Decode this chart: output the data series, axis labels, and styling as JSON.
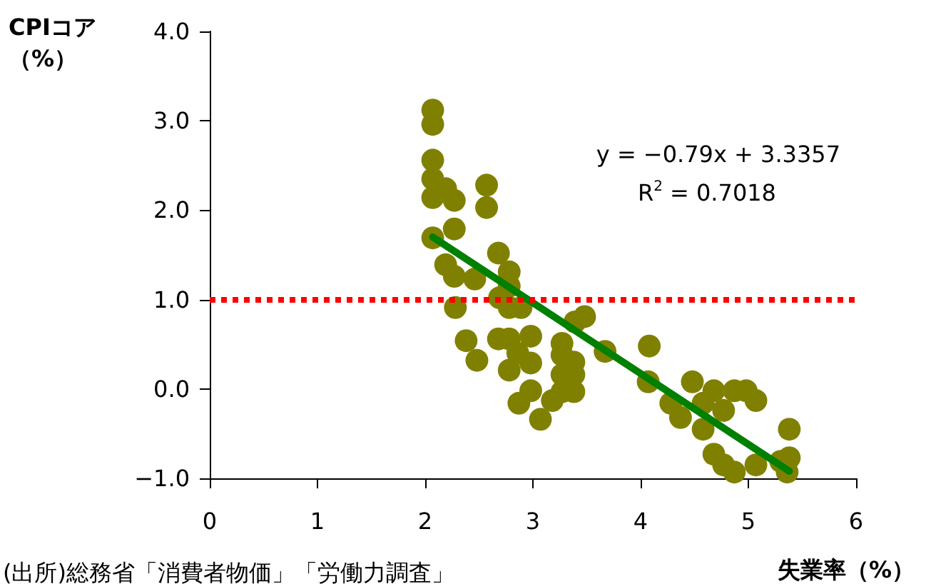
{
  "chart_data": {
    "type": "scatter",
    "xlabel": "失業率（%）",
    "ylabel": "CPIコア（%）",
    "xlim": [
      0,
      6
    ],
    "xticks": [
      0,
      1,
      2,
      3,
      4,
      5,
      6
    ],
    "ylim": [
      -1,
      4
    ],
    "yticks": [
      {
        "value": -1,
        "label": "−1.0"
      },
      {
        "value": 0,
        "label": "0.0"
      },
      {
        "value": 1,
        "label": "1.0"
      },
      {
        "value": 2,
        "label": "2.0"
      },
      {
        "value": 3,
        "label": "3.0"
      },
      {
        "value": 4,
        "label": "4.0"
      }
    ],
    "grid": false,
    "series": [
      {
        "color": "#808000",
        "marker": "circle",
        "x": [
          2.07,
          2.07,
          2.07,
          2.07,
          2.19,
          2.07,
          2.27,
          2.57,
          2.57,
          2.07,
          2.27,
          2.19,
          2.27,
          2.46,
          2.68,
          2.78,
          2.78,
          2.69,
          2.78,
          2.89,
          2.28,
          2.38,
          2.48,
          2.68,
          2.78,
          2.86,
          2.78,
          2.98,
          2.98,
          2.87,
          2.98,
          3.07,
          3.18,
          3.27,
          3.27,
          3.38,
          3.27,
          3.38,
          3.38,
          3.27,
          3.39,
          3.48,
          3.67,
          4.08,
          4.07,
          4.48,
          4.28,
          4.37,
          4.68,
          4.58,
          4.58,
          4.77,
          4.87,
          4.98,
          5.07,
          4.68,
          4.77,
          4.87,
          5.07,
          5.38,
          5.38,
          5.36,
          5.3
        ],
        "values": [
          3.12,
          2.96,
          2.56,
          2.35,
          2.24,
          2.14,
          2.11,
          2.28,
          2.03,
          1.69,
          1.79,
          1.39,
          1.26,
          1.23,
          1.52,
          1.31,
          1.15,
          1.02,
          0.91,
          0.91,
          0.91,
          0.54,
          0.32,
          0.56,
          0.56,
          0.4,
          0.21,
          0.59,
          0.29,
          -0.16,
          -0.02,
          -0.34,
          -0.13,
          0.51,
          0.38,
          0.3,
          0.16,
          0.16,
          -0.03,
          -0.03,
          0.75,
          0.81,
          0.42,
          0.48,
          0.08,
          0.08,
          -0.16,
          -0.32,
          -0.02,
          -0.16,
          -0.45,
          -0.24,
          -0.02,
          -0.02,
          -0.13,
          -0.73,
          -0.85,
          -0.93,
          -0.85,
          -0.45,
          -0.77,
          -0.93,
          -0.81
        ]
      },
      {
        "type": "line",
        "color": "#008000",
        "line_style": "solid",
        "x": [
          2.07,
          5.38
        ],
        "values": [
          1.7,
          -0.92
        ]
      }
    ],
    "ref_lines": [
      {
        "axis": "y",
        "value": 1,
        "color": "#ff0000",
        "line_style": "dotted"
      }
    ],
    "annotations": [
      "y = −0.79x + 3.3357",
      "R$^{2}$ = 0.7018",
      "(出所)総務省「消費者物価」「労働力調査」"
    ]
  }
}
